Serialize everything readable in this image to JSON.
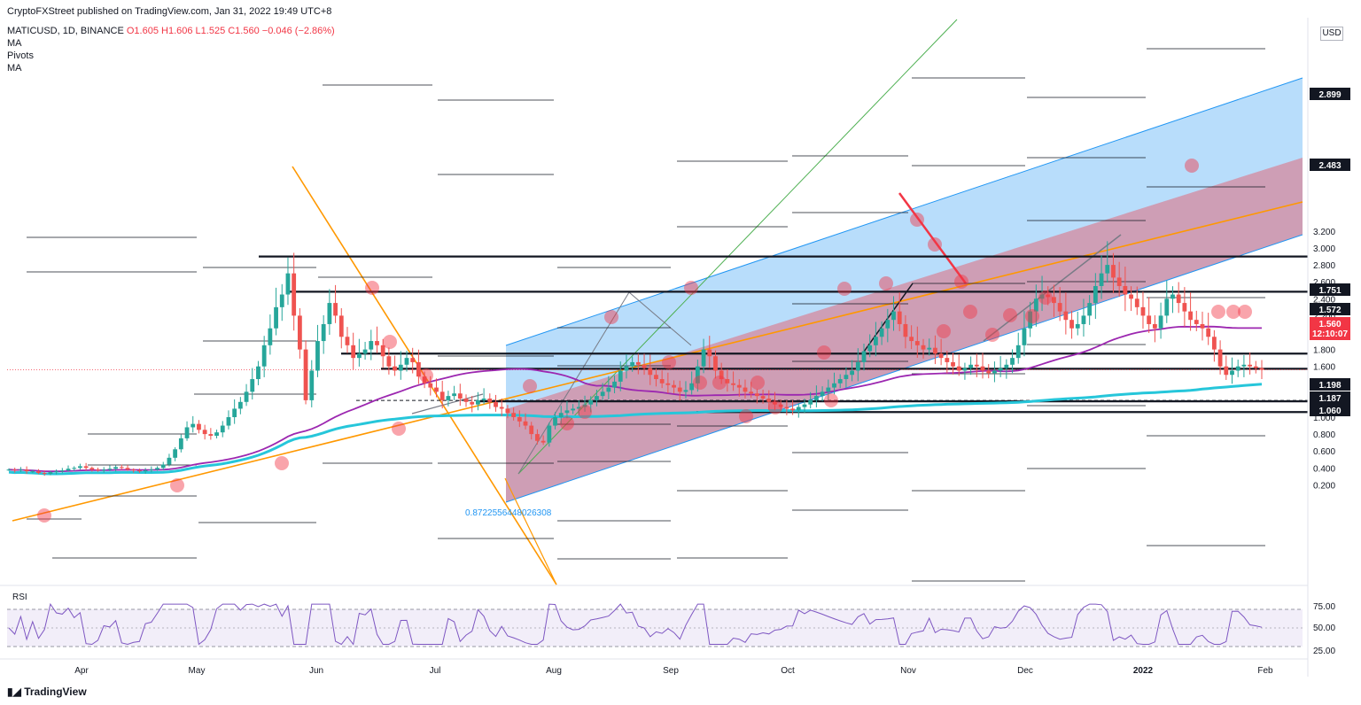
{
  "header": {
    "published": "CryptoFXStreet published on TradingView.com, Jan 31, 2022 19:49 UTC+8",
    "symbol": "MATICUSD, 1D, BINANCE",
    "ohlc": "O1.605 H1.606 L1.525 C1.560 −0.046 (−2.86%)",
    "indicators": [
      "MA",
      "Pivots",
      "MA"
    ]
  },
  "footer": {
    "brand": "TradingView"
  },
  "rsi_label": "RSI",
  "currency": "USD",
  "chart_data": {
    "type": "candlestick",
    "symbol": "MATICUSD",
    "timeframe": "1D",
    "exchange": "BINANCE",
    "ylim": [
      0.0,
      3.3
    ],
    "y_ticks": [
      "0.200",
      "0.400",
      "0.600",
      "0.800",
      "1.000",
      "1.200",
      "1.400",
      "1.600",
      "1.800",
      "2.000",
      "2.200",
      "2.400",
      "2.600",
      "2.800",
      "3.000",
      "3.200"
    ],
    "x_ticks": [
      "Apr",
      "May",
      "Jun",
      "Jul",
      "Aug",
      "Sep",
      "Oct",
      "Nov",
      "Dec",
      "2022",
      "Feb"
    ],
    "key_levels": [
      {
        "value": 2.899,
        "label": "2.899"
      },
      {
        "value": 2.483,
        "label": "2.483"
      },
      {
        "value": 1.751,
        "label": "1.751"
      },
      {
        "value": 1.572,
        "label": "1.572"
      },
      {
        "value": 1.198,
        "label": "1.198"
      },
      {
        "value": 1.187,
        "label": "1.187"
      },
      {
        "value": 1.06,
        "label": "1.060"
      }
    ],
    "last_price": {
      "value": 1.56,
      "label": "1.560",
      "countdown": "12:10:07"
    },
    "fib_annotation": "0.8722556448026308",
    "closes": [
      0.38,
      0.37,
      0.38,
      0.36,
      0.36,
      0.34,
      0.33,
      0.35,
      0.36,
      0.37,
      0.39,
      0.4,
      0.42,
      0.4,
      0.38,
      0.37,
      0.38,
      0.39,
      0.41,
      0.4,
      0.38,
      0.37,
      0.36,
      0.37,
      0.38,
      0.4,
      0.44,
      0.52,
      0.62,
      0.75,
      0.88,
      0.92,
      0.85,
      0.8,
      0.78,
      0.82,
      0.9,
      1.0,
      1.1,
      1.18,
      1.3,
      1.45,
      1.6,
      1.85,
      2.05,
      2.3,
      2.45,
      2.7,
      2.2,
      1.8,
      1.2,
      1.55,
      1.9,
      2.1,
      2.35,
      2.2,
      1.95,
      1.85,
      1.7,
      1.75,
      1.8,
      1.9,
      1.85,
      1.72,
      1.6,
      1.55,
      1.62,
      1.7,
      1.65,
      1.48,
      1.4,
      1.35,
      1.3,
      1.2,
      1.25,
      1.28,
      1.22,
      1.18,
      1.15,
      1.2,
      1.22,
      1.18,
      1.12,
      1.1,
      1.05,
      1.0,
      0.95,
      0.9,
      0.8,
      0.72,
      0.7,
      0.9,
      1.0,
      1.05,
      1.08,
      1.1,
      1.12,
      1.15,
      1.2,
      1.25,
      1.3,
      1.35,
      1.42,
      1.55,
      1.6,
      1.65,
      1.62,
      1.58,
      1.5,
      1.45,
      1.4,
      1.38,
      1.35,
      1.3,
      1.32,
      1.4,
      1.6,
      1.8,
      1.72,
      1.55,
      1.45,
      1.4,
      1.38,
      1.35,
      1.3,
      1.28,
      1.25,
      1.22,
      1.18,
      1.15,
      1.12,
      1.1,
      1.08,
      1.12,
      1.15,
      1.2,
      1.25,
      1.3,
      1.35,
      1.4,
      1.45,
      1.5,
      1.55,
      1.65,
      1.78,
      1.85,
      1.95,
      2.05,
      2.15,
      2.25,
      2.1,
      1.95,
      1.9,
      1.85,
      1.8,
      1.82,
      1.75,
      1.7,
      1.65,
      1.6,
      1.55,
      1.58,
      1.62,
      1.6,
      1.55,
      1.52,
      1.55,
      1.58,
      1.62,
      1.7,
      1.85,
      2.05,
      2.25,
      2.4,
      2.45,
      2.42,
      2.35,
      2.25,
      2.15,
      2.05,
      2.1,
      2.2,
      2.35,
      2.55,
      2.7,
      2.8,
      2.65,
      2.55,
      2.45,
      2.4,
      2.3,
      2.2,
      2.1,
      2.05,
      2.2,
      2.4,
      2.45,
      2.35,
      2.25,
      2.15,
      2.1,
      2.05,
      1.95,
      1.8,
      1.6,
      1.5,
      1.55,
      1.6,
      1.62,
      1.6,
      1.58,
      1.56
    ]
  }
}
